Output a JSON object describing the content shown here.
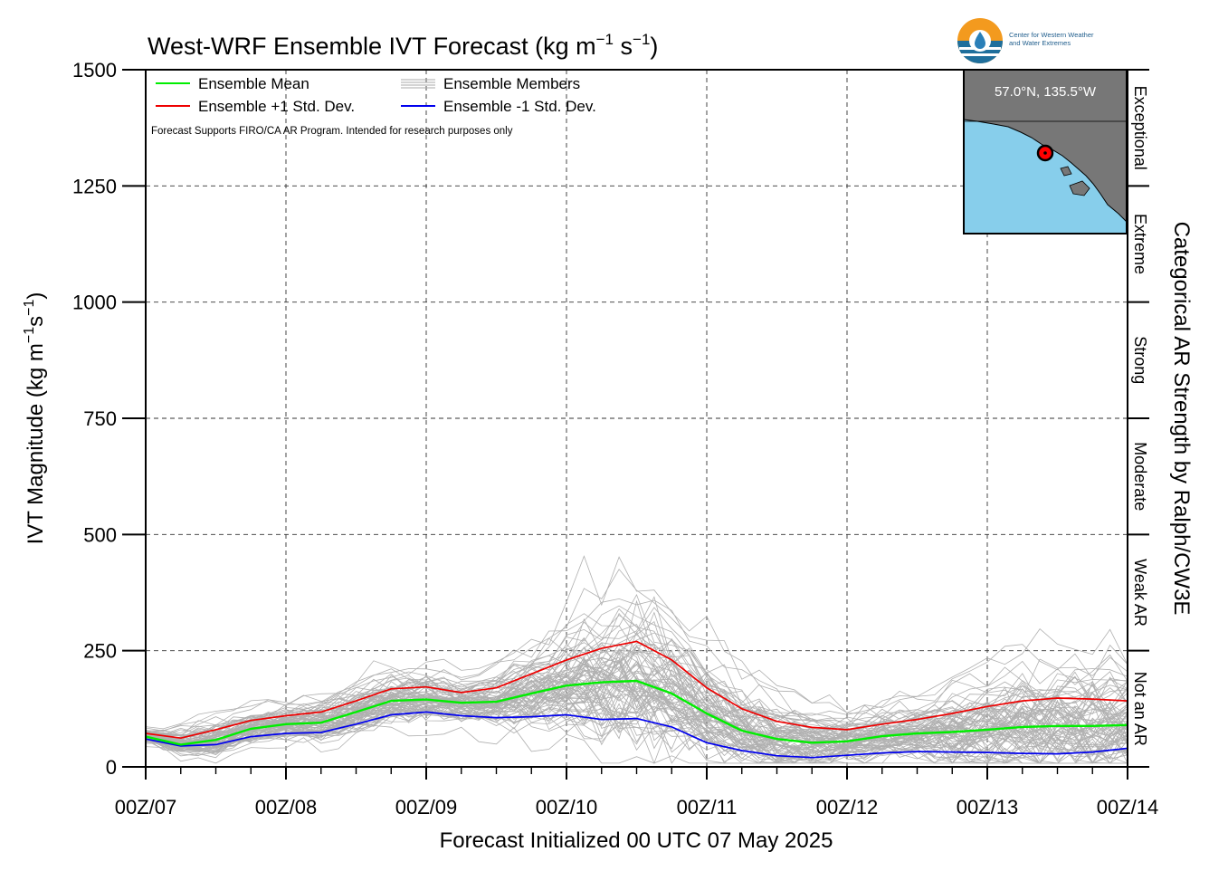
{
  "chart_data": {
    "type": "line",
    "title_main": "West-WRF Ensemble IVT Forecast (kg m",
    "title_sup1": "−1",
    "title_mid": " s",
    "title_sup2": "−1",
    "title_end": ")",
    "xlabel": "Forecast Initialized 00 UTC 07 May 2025",
    "ylabel_main": "IVT Magnitude (kg m",
    "ylabel_sup1": "−1",
    "ylabel_mid": "s",
    "ylabel_sup2": "−1",
    "ylabel_end": ")",
    "right_label": "Categorical AR Strength by Ralph/CW3E",
    "note": "Forecast Supports FIRO/CA AR Program. Intended for research purposes only",
    "xlim": [
      0,
      168
    ],
    "ylim": [
      0,
      1500
    ],
    "grid": true,
    "legend_position": "top-left",
    "x_ticks": [
      {
        "x": 0,
        "label": "00Z/07"
      },
      {
        "x": 24,
        "label": "00Z/08"
      },
      {
        "x": 48,
        "label": "00Z/09"
      },
      {
        "x": 72,
        "label": "00Z/10"
      },
      {
        "x": 96,
        "label": "00Z/11"
      },
      {
        "x": 120,
        "label": "00Z/12"
      },
      {
        "x": 144,
        "label": "00Z/13"
      },
      {
        "x": 168,
        "label": "00Z/14"
      }
    ],
    "y_ticks": [
      {
        "y": 0,
        "label": "0"
      },
      {
        "y": 250,
        "label": "250"
      },
      {
        "y": 500,
        "label": "500"
      },
      {
        "y": 750,
        "label": "750"
      },
      {
        "y": 1000,
        "label": "1000"
      },
      {
        "y": 1250,
        "label": "1250"
      },
      {
        "y": 1500,
        "label": "1500"
      }
    ],
    "categories": [
      {
        "label": "Not an AR",
        "from": 0,
        "to": 250
      },
      {
        "label": "Weak AR",
        "from": 250,
        "to": 500
      },
      {
        "label": "Moderate",
        "from": 500,
        "to": 750
      },
      {
        "label": "Strong",
        "from": 750,
        "to": 1000
      },
      {
        "label": "Extreme",
        "from": 1000,
        "to": 1250
      },
      {
        "label": "Exceptional",
        "from": 1250,
        "to": 1500
      }
    ],
    "x": [
      0,
      6,
      12,
      18,
      24,
      30,
      36,
      42,
      48,
      54,
      60,
      66,
      72,
      78,
      84,
      90,
      96,
      102,
      108,
      114,
      120,
      126,
      132,
      138,
      144,
      150,
      156,
      162,
      168
    ],
    "series": [
      {
        "name": "Ensemble Mean",
        "color": "#00ee00",
        "values": [
          65,
          48,
          58,
          82,
          92,
          95,
          118,
          142,
          145,
          138,
          140,
          158,
          175,
          182,
          185,
          158,
          115,
          78,
          60,
          52,
          55,
          66,
          72,
          75,
          80,
          86,
          88,
          88,
          90
        ]
      },
      {
        "name": "Ensemble +1 Std. Dev.",
        "color": "#ee0000",
        "values": [
          72,
          62,
          80,
          100,
          110,
          118,
          142,
          168,
          172,
          160,
          170,
          200,
          230,
          255,
          270,
          230,
          170,
          125,
          98,
          85,
          80,
          92,
          102,
          115,
          130,
          142,
          148,
          146,
          142
        ]
      },
      {
        "name": "Ensemble -1 Std. Dev.",
        "color": "#0000ee",
        "values": [
          60,
          45,
          48,
          65,
          72,
          74,
          92,
          112,
          118,
          110,
          106,
          108,
          112,
          102,
          104,
          86,
          52,
          35,
          24,
          20,
          25,
          30,
          33,
          32,
          31,
          29,
          28,
          32,
          40
        ]
      }
    ],
    "members_label": "Ensemble Members",
    "members_color": "#b0b0b0",
    "members_count": 80
  },
  "inset": {
    "location": "57.0°N, 135.5°W",
    "land_color": "#777777",
    "ocean_color": "#87ceeb",
    "marker_color": "#ff0000"
  },
  "logo": {
    "line1": "Center for Western Weather",
    "line2": "and Water Extremes"
  }
}
